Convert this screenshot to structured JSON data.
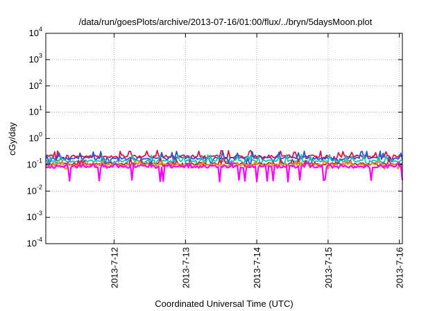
{
  "chart_data": {
    "type": "line",
    "title": "/data/run/goesPlots/archive/2013-07-16/01:00/flux/../bryn/5daysMoon.plot",
    "xlabel": "Coordinated Universal Time (UTC)",
    "ylabel": "cGy/day",
    "y_scale": "log",
    "ylim": [
      0.0001,
      10000
    ],
    "y_ticks": [
      {
        "value": 0.0001,
        "base": "10",
        "exp": "-4"
      },
      {
        "value": 0.001,
        "base": "10",
        "exp": "-3"
      },
      {
        "value": 0.01,
        "base": "10",
        "exp": "-2"
      },
      {
        "value": 0.1,
        "base": "10",
        "exp": "-1"
      },
      {
        "value": 1,
        "base": "10",
        "exp": "0"
      },
      {
        "value": 10,
        "base": "10",
        "exp": "1"
      },
      {
        "value": 100,
        "base": "10",
        "exp": "2"
      },
      {
        "value": 1000,
        "base": "10",
        "exp": "3"
      },
      {
        "value": 10000,
        "base": "10",
        "exp": "4"
      }
    ],
    "xlim": [
      "2013-07-11 01:00",
      "2013-07-16 01:00"
    ],
    "x_ticks": [
      "2013-7-12",
      "2013-7-13",
      "2013-7-14",
      "2013-7-15",
      "2013-7-16"
    ],
    "grid": true,
    "legend": "none",
    "series": [
      {
        "color": "#ff00ff",
        "base": 0.085,
        "spike_low": 0.025,
        "spike_high": 0.11
      },
      {
        "color": "#e6901a",
        "base": 0.1,
        "spike_low": 0.075,
        "spike_high": 0.13
      },
      {
        "color": "#c81e3c",
        "base": 0.11,
        "spike_low": 0.085,
        "spike_high": 0.16
      },
      {
        "color": "#19c0b0",
        "base": 0.14,
        "spike_low": 0.1,
        "spike_high": 0.22
      },
      {
        "color": "#2255dd",
        "base": 0.18,
        "spike_low": 0.12,
        "spike_high": 0.3
      },
      {
        "color": "#e01040",
        "base": 0.21,
        "spike_low": 0.14,
        "spike_high": 0.32
      }
    ]
  }
}
